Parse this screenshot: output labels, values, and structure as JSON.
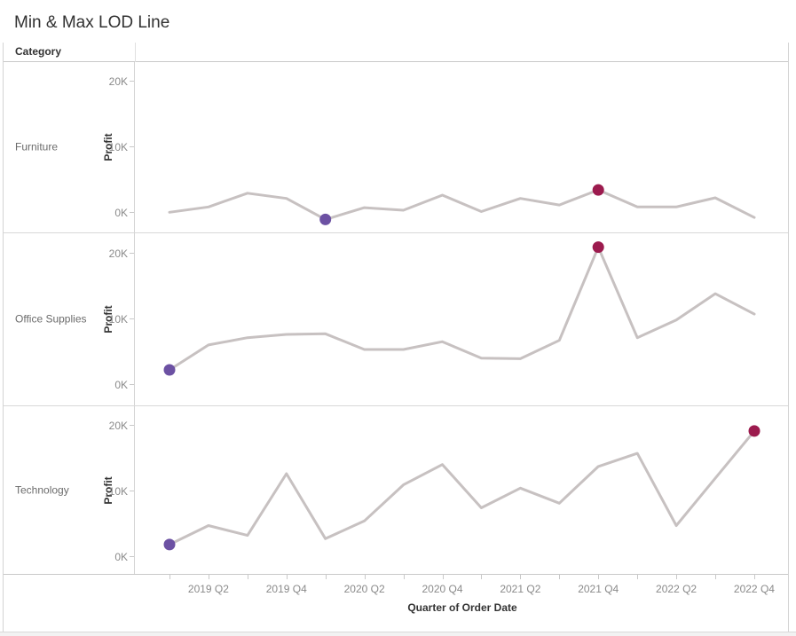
{
  "title": "Min & Max LOD Line",
  "columns_header": "Category",
  "x_axis": {
    "title": "Quarter of Order Date",
    "tick_labels": [
      "2019 Q2",
      "2019 Q4",
      "2020 Q2",
      "2020 Q4",
      "2021 Q2",
      "2021 Q4",
      "2022 Q2",
      "2022 Q4"
    ]
  },
  "y_axis": {
    "title": "Profit",
    "tick_labels": [
      "20K",
      "10K",
      "0K"
    ]
  },
  "colors": {
    "line": "#c7c1c1",
    "min_dot": "#6c51a3",
    "max_dot": "#9c1b4e"
  },
  "chart_data": {
    "type": "line",
    "title": "Min & Max LOD Line",
    "xlabel": "Quarter of Order Date",
    "ylabel": "Profit",
    "units": "thousands (K) of profit dollars",
    "yticks_k": [
      0,
      10,
      20
    ],
    "ylim_k": [
      -3,
      23
    ],
    "grid": false,
    "legend_position": "none",
    "x": [
      "2019 Q1",
      "2019 Q2",
      "2019 Q3",
      "2019 Q4",
      "2020 Q1",
      "2020 Q2",
      "2020 Q3",
      "2020 Q4",
      "2021 Q1",
      "2021 Q2",
      "2021 Q3",
      "2021 Q4",
      "2022 Q1",
      "2022 Q2",
      "2022 Q3",
      "2022 Q4"
    ],
    "series": [
      {
        "name": "Furniture",
        "values_k": [
          0.1,
          0.9,
          3.0,
          2.2,
          -1.0,
          0.8,
          0.4,
          2.7,
          0.2,
          2.2,
          1.2,
          3.5,
          0.9,
          0.9,
          2.3,
          -0.7
        ],
        "min_index": 4,
        "max_index": 11,
        "min_label": "2020 Q1",
        "max_label": "2021 Q4"
      },
      {
        "name": "Office Supplies",
        "values_k": [
          2.3,
          6.1,
          7.2,
          7.7,
          7.8,
          5.4,
          5.4,
          6.6,
          4.1,
          4.0,
          6.8,
          21.0,
          7.2,
          9.9,
          13.9,
          10.8
        ],
        "min_index": 0,
        "max_index": 11,
        "min_label": "2019 Q1",
        "max_label": "2021 Q4"
      },
      {
        "name": "Technology",
        "values_k": [
          1.9,
          4.8,
          3.3,
          12.7,
          2.8,
          5.5,
          11.0,
          14.1,
          7.5,
          10.5,
          8.2,
          13.8,
          15.8,
          4.8,
          12.0,
          19.2
        ],
        "min_index": 0,
        "max_index": 15,
        "min_label": "2019 Q1",
        "max_label": "2022 Q4"
      }
    ]
  }
}
